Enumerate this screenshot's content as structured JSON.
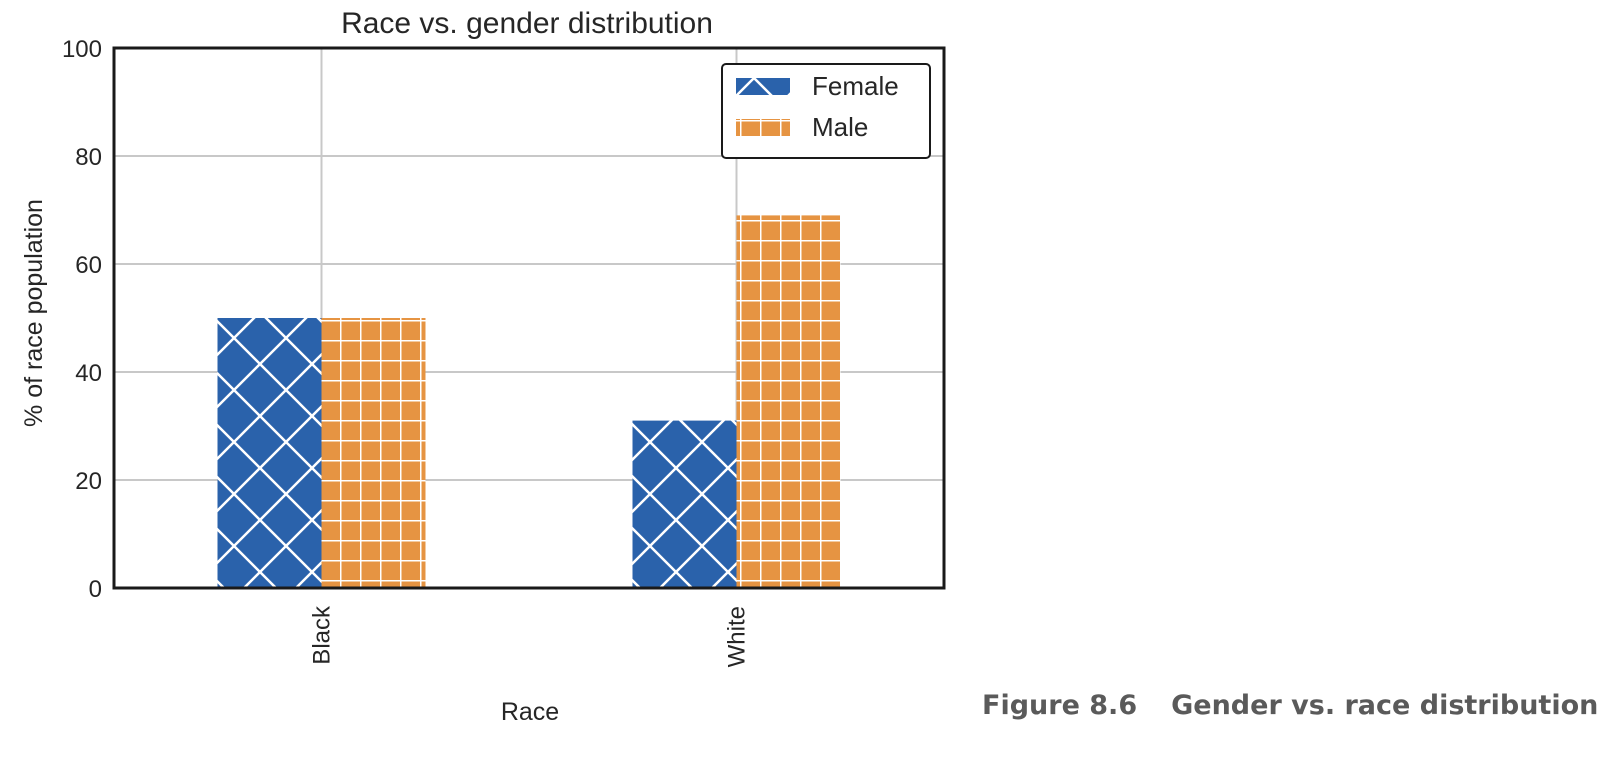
{
  "chart_data": {
    "type": "bar",
    "title": "Race vs. gender distribution",
    "xlabel": "Race",
    "ylabel": "% of race population",
    "categories": [
      "Black",
      "White"
    ],
    "series": [
      {
        "name": "Female",
        "values": [
          50,
          31
        ],
        "color": "#2a62ab",
        "hatch": "cross-diagonal"
      },
      {
        "name": "Male",
        "values": [
          50,
          69
        ],
        "color": "#e69442",
        "hatch": "grid"
      }
    ],
    "ylim": [
      0,
      100
    ],
    "yticks": [
      "0",
      "20",
      "40",
      "60",
      "80",
      "100"
    ],
    "grid": true,
    "legend_position": "top-right"
  },
  "caption": {
    "number": "Figure 8.6",
    "text": "Gender vs. race distribution"
  }
}
